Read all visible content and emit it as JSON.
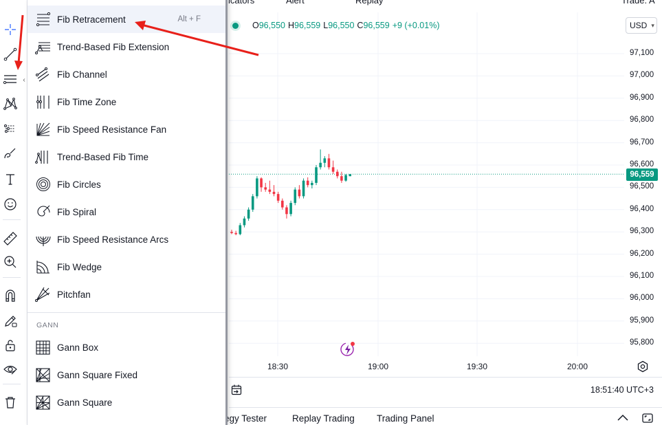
{
  "topbar": {
    "indicators_fragment": "icators",
    "alert_label": "Alert",
    "replay_label": "Replay",
    "trade_fragment": "Trade. A"
  },
  "legend": {
    "o_key": "O",
    "o_val": "96,550",
    "h_key": "H",
    "h_val": "96,559",
    "l_key": "L",
    "l_val": "96,550",
    "c_key": "C",
    "c_val": "96,559",
    "change": "+9 (+0.01%)"
  },
  "currency": "USD",
  "price_axis": [
    "97,100",
    "97,000",
    "96,900",
    "96,800",
    "96,700",
    "96,600",
    "96,500",
    "96,400",
    "96,300",
    "96,200",
    "96,100",
    "96,000",
    "95,900",
    "95,800"
  ],
  "last_price": "96,559",
  "time_axis": [
    "18:30",
    "19:00",
    "19:30",
    "20:00"
  ],
  "clock": "18:51:40 UTC+3",
  "panel_tabs": [
    "egy Tester",
    "Replay Trading",
    "Trading Panel"
  ],
  "menu": {
    "fib_items": [
      {
        "label": "Fib Retracement",
        "shortcut": "Alt + F",
        "icon": "fib-retracement-icon"
      },
      {
        "label": "Trend-Based Fib Extension",
        "icon": "trend-based-fib-extension-icon"
      },
      {
        "label": "Fib Channel",
        "icon": "fib-channel-icon"
      },
      {
        "label": "Fib Time Zone",
        "icon": "fib-time-zone-icon"
      },
      {
        "label": "Fib Speed Resistance Fan",
        "icon": "fib-speed-resistance-fan-icon"
      },
      {
        "label": "Trend-Based Fib Time",
        "icon": "trend-based-fib-time-icon"
      },
      {
        "label": "Fib Circles",
        "icon": "fib-circles-icon"
      },
      {
        "label": "Fib Spiral",
        "icon": "fib-spiral-icon"
      },
      {
        "label": "Fib Speed Resistance Arcs",
        "icon": "fib-speed-resistance-arcs-icon"
      },
      {
        "label": "Fib Wedge",
        "icon": "fib-wedge-icon"
      },
      {
        "label": "Pitchfan",
        "icon": "pitchfan-icon"
      }
    ],
    "gann_header": "GANN",
    "gann_items": [
      {
        "label": "Gann Box",
        "icon": "gann-box-icon"
      },
      {
        "label": "Gann Square Fixed",
        "icon": "gann-square-fixed-icon"
      },
      {
        "label": "Gann Square",
        "icon": "gann-square-icon"
      }
    ]
  },
  "colors": {
    "up": "#089981",
    "down": "#f23645",
    "annotation": "#e8201a",
    "last_price_bg": "#089981"
  },
  "chart_data": {
    "type": "candlestick",
    "y_range": [
      95750,
      97150
    ],
    "x_labels": [
      "18:30",
      "19:00",
      "19:30",
      "20:00"
    ],
    "last_price": 96559,
    "candles": [
      {
        "o": 96300,
        "h": 96310,
        "l": 96290,
        "c": 96295
      },
      {
        "o": 96295,
        "h": 96305,
        "l": 96285,
        "c": 96290
      },
      {
        "o": 96290,
        "h": 96340,
        "l": 96285,
        "c": 96330
      },
      {
        "o": 96330,
        "h": 96370,
        "l": 96320,
        "c": 96360
      },
      {
        "o": 96360,
        "h": 96410,
        "l": 96350,
        "c": 96400
      },
      {
        "o": 96400,
        "h": 96470,
        "l": 96390,
        "c": 96460
      },
      {
        "o": 96460,
        "h": 96550,
        "l": 96450,
        "c": 96540
      },
      {
        "o": 96540,
        "h": 96545,
        "l": 96480,
        "c": 96500
      },
      {
        "o": 96500,
        "h": 96520,
        "l": 96480,
        "c": 96490
      },
      {
        "o": 96490,
        "h": 96530,
        "l": 96470,
        "c": 96480
      },
      {
        "o": 96480,
        "h": 96510,
        "l": 96460,
        "c": 96470
      },
      {
        "o": 96470,
        "h": 96480,
        "l": 96430,
        "c": 96440
      },
      {
        "o": 96440,
        "h": 96450,
        "l": 96400,
        "c": 96410
      },
      {
        "o": 96410,
        "h": 96420,
        "l": 96360,
        "c": 96380
      },
      {
        "o": 96380,
        "h": 96440,
        "l": 96370,
        "c": 96430
      },
      {
        "o": 96430,
        "h": 96500,
        "l": 96420,
        "c": 96490
      },
      {
        "o": 96490,
        "h": 96510,
        "l": 96450,
        "c": 96460
      },
      {
        "o": 96460,
        "h": 96540,
        "l": 96450,
        "c": 96530
      },
      {
        "o": 96530,
        "h": 96545,
        "l": 96500,
        "c": 96510
      },
      {
        "o": 96510,
        "h": 96530,
        "l": 96495,
        "c": 96520
      },
      {
        "o": 96520,
        "h": 96600,
        "l": 96510,
        "c": 96590
      },
      {
        "o": 96590,
        "h": 96670,
        "l": 96580,
        "c": 96610
      },
      {
        "o": 96610,
        "h": 96640,
        "l": 96590,
        "c": 96630
      },
      {
        "o": 96630,
        "h": 96650,
        "l": 96580,
        "c": 96590
      },
      {
        "o": 96590,
        "h": 96620,
        "l": 96560,
        "c": 96570
      },
      {
        "o": 96570,
        "h": 96580,
        "l": 96540,
        "c": 96550
      },
      {
        "o": 96550,
        "h": 96570,
        "l": 96520,
        "c": 96530
      },
      {
        "o": 96530,
        "h": 96560,
        "l": 96525,
        "c": 96555
      },
      {
        "o": 96550,
        "h": 96559,
        "l": 96550,
        "c": 96559
      }
    ]
  }
}
